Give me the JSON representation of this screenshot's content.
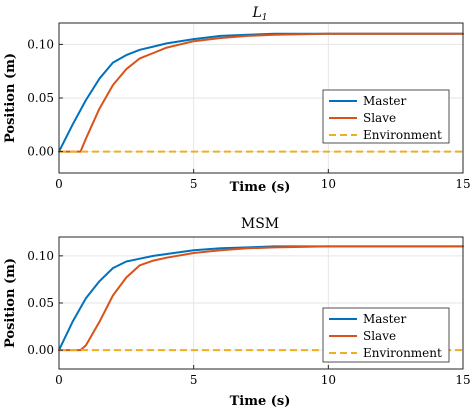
{
  "chart_data": [
    {
      "type": "line",
      "title": "L1",
      "title_main": "L",
      "title_sub": "1",
      "xlabel": "Time (s)",
      "ylabel": "Position (m)",
      "xlim": [
        0,
        15
      ],
      "ylim": [
        -0.02,
        0.12
      ],
      "xticks": [
        "0",
        "5",
        "10",
        "15"
      ],
      "yticks": [
        "0.00",
        "0.05",
        "0.10"
      ],
      "grid": true,
      "legend_placement": "lower-right",
      "series": [
        {
          "name": "Master",
          "color": "#0072BD",
          "style": "solid",
          "x": [
            0,
            0.5,
            1,
            1.5,
            2,
            2.5,
            3,
            3.5,
            4,
            5,
            6,
            7,
            8,
            10,
            12,
            15
          ],
          "y": [
            0,
            0.025,
            0.048,
            0.068,
            0.083,
            0.09,
            0.095,
            0.098,
            0.101,
            0.105,
            0.108,
            0.109,
            0.11,
            0.11,
            0.11,
            0.11
          ]
        },
        {
          "name": "Slave",
          "color": "#D95319",
          "style": "solid",
          "x": [
            0,
            0.8,
            1,
            1.5,
            2,
            2.5,
            3,
            3.5,
            4,
            5,
            6,
            7,
            8,
            10,
            12,
            15
          ],
          "y": [
            0,
            0,
            0.012,
            0.04,
            0.062,
            0.077,
            0.087,
            0.092,
            0.097,
            0.103,
            0.106,
            0.108,
            0.109,
            0.11,
            0.11,
            0.11
          ]
        },
        {
          "name": "Environment",
          "color": "#EDB120",
          "style": "dashed",
          "x": [
            0,
            15
          ],
          "y": [
            0,
            0
          ]
        }
      ]
    },
    {
      "type": "line",
      "title": "MSM",
      "xlabel": "Time (s)",
      "ylabel": "Position (m)",
      "xlim": [
        0,
        15
      ],
      "ylim": [
        -0.02,
        0.12
      ],
      "xticks": [
        "0",
        "5",
        "10",
        "15"
      ],
      "yticks": [
        "0.00",
        "0.05",
        "0.10"
      ],
      "grid": true,
      "legend_placement": "lower-right",
      "series": [
        {
          "name": "Master",
          "color": "#0072BD",
          "style": "solid",
          "x": [
            0,
            0.5,
            1,
            1.5,
            2,
            2.5,
            3,
            3.5,
            4,
            5,
            6,
            7,
            8,
            10,
            12,
            15
          ],
          "y": [
            0,
            0.03,
            0.055,
            0.073,
            0.087,
            0.094,
            0.097,
            0.1,
            0.102,
            0.106,
            0.108,
            0.109,
            0.11,
            0.11,
            0.11,
            0.11
          ]
        },
        {
          "name": "Slave",
          "color": "#D95319",
          "style": "solid",
          "x": [
            0,
            0.8,
            1,
            1.5,
            2,
            2.5,
            3,
            3.5,
            4,
            5,
            6,
            7,
            8,
            10,
            12,
            15
          ],
          "y": [
            0,
            0,
            0.005,
            0.03,
            0.058,
            0.077,
            0.09,
            0.095,
            0.098,
            0.103,
            0.106,
            0.108,
            0.109,
            0.11,
            0.11,
            0.11
          ]
        },
        {
          "name": "Environment",
          "color": "#EDB120",
          "style": "dashed",
          "x": [
            0,
            15
          ],
          "y": [
            0,
            0
          ]
        }
      ]
    }
  ]
}
